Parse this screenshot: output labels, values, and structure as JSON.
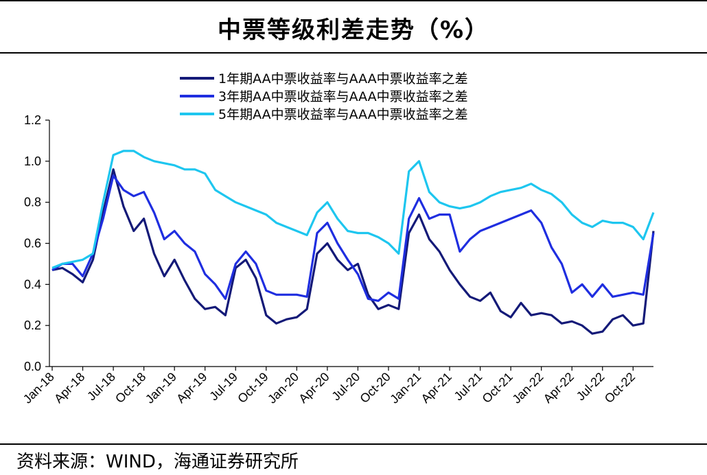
{
  "header": {
    "title": "中票等级利差走势（%）"
  },
  "footer": {
    "source": "资料来源：WIND，海通证券研究所"
  },
  "chart_data": {
    "type": "line",
    "title": "中票等级利差走势（%）",
    "xlabel": "",
    "ylabel": "",
    "ylim": [
      0,
      1.2
    ],
    "yticks": [
      "0.0",
      "0.2",
      "0.4",
      "0.6",
      "0.8",
      "1.0",
      "1.2"
    ],
    "xticks": [
      "Jan-18",
      "Apr-18",
      "Jul-18",
      "Oct-18",
      "Jan-19",
      "Apr-19",
      "Jul-19",
      "Oct-19",
      "Jan-20",
      "Apr-20",
      "Jul-20",
      "Oct-20",
      "Jan-21",
      "Apr-21",
      "Jul-21",
      "Oct-21",
      "Jan-22",
      "Apr-22",
      "Jul-22",
      "Oct-22"
    ],
    "grid": false,
    "legend_position": "top-center",
    "x": [
      "2018-01",
      "2018-02",
      "2018-03",
      "2018-04",
      "2018-05",
      "2018-06",
      "2018-07",
      "2018-08",
      "2018-09",
      "2018-10",
      "2018-11",
      "2018-12",
      "2019-01",
      "2019-02",
      "2019-03",
      "2019-04",
      "2019-05",
      "2019-06",
      "2019-07",
      "2019-08",
      "2019-09",
      "2019-10",
      "2019-11",
      "2019-12",
      "2020-01",
      "2020-02",
      "2020-03",
      "2020-04",
      "2020-05",
      "2020-06",
      "2020-07",
      "2020-08",
      "2020-09",
      "2020-10",
      "2020-11",
      "2020-12",
      "2021-01",
      "2021-02",
      "2021-03",
      "2021-04",
      "2021-05",
      "2021-06",
      "2021-07",
      "2021-08",
      "2021-09",
      "2021-10",
      "2021-11",
      "2021-12",
      "2022-01",
      "2022-02",
      "2022-03",
      "2022-04",
      "2022-05",
      "2022-06",
      "2022-07",
      "2022-08",
      "2022-09",
      "2022-10",
      "2022-11",
      "2022-12"
    ],
    "series": [
      {
        "name": "1年期AA中票收益率与AAA中票收益率之差",
        "color": "#141a78",
        "values": [
          0.47,
          0.48,
          0.45,
          0.41,
          0.52,
          0.75,
          0.96,
          0.78,
          0.66,
          0.72,
          0.55,
          0.44,
          0.52,
          0.42,
          0.33,
          0.28,
          0.29,
          0.25,
          0.48,
          0.52,
          0.43,
          0.25,
          0.21,
          0.23,
          0.24,
          0.28,
          0.55,
          0.6,
          0.52,
          0.47,
          0.5,
          0.35,
          0.28,
          0.3,
          0.28,
          0.65,
          0.74,
          0.62,
          0.56,
          0.47,
          0.4,
          0.34,
          0.32,
          0.36,
          0.27,
          0.24,
          0.31,
          0.25,
          0.26,
          0.25,
          0.21,
          0.22,
          0.2,
          0.16,
          0.17,
          0.23,
          0.25,
          0.2,
          0.21,
          0.66
        ]
      },
      {
        "name": "3年期AA中票收益率与AAA中票收益率之差",
        "color": "#1f2ee0",
        "values": [
          0.47,
          0.5,
          0.5,
          0.44,
          0.55,
          0.72,
          0.93,
          0.86,
          0.83,
          0.85,
          0.75,
          0.62,
          0.66,
          0.6,
          0.56,
          0.45,
          0.4,
          0.33,
          0.5,
          0.56,
          0.5,
          0.37,
          0.35,
          0.35,
          0.35,
          0.34,
          0.65,
          0.7,
          0.6,
          0.52,
          0.45,
          0.33,
          0.32,
          0.36,
          0.33,
          0.72,
          0.82,
          0.72,
          0.74,
          0.74,
          0.56,
          0.62,
          0.66,
          0.68,
          0.7,
          0.72,
          0.74,
          0.76,
          0.7,
          0.58,
          0.5,
          0.36,
          0.4,
          0.34,
          0.4,
          0.34,
          0.35,
          0.36,
          0.35,
          0.65
        ]
      },
      {
        "name": "5年期AA中票收益率与AAA中票收益率之差",
        "color": "#1ec6ef",
        "values": [
          0.48,
          0.5,
          0.51,
          0.52,
          0.55,
          0.8,
          1.03,
          1.05,
          1.05,
          1.02,
          1.0,
          0.99,
          0.98,
          0.96,
          0.96,
          0.94,
          0.86,
          0.83,
          0.8,
          0.78,
          0.76,
          0.74,
          0.7,
          0.68,
          0.66,
          0.64,
          0.75,
          0.8,
          0.72,
          0.66,
          0.65,
          0.65,
          0.63,
          0.6,
          0.55,
          0.95,
          1.0,
          0.85,
          0.8,
          0.78,
          0.77,
          0.78,
          0.8,
          0.83,
          0.85,
          0.86,
          0.87,
          0.89,
          0.86,
          0.84,
          0.8,
          0.74,
          0.7,
          0.68,
          0.71,
          0.7,
          0.7,
          0.68,
          0.62,
          0.75
        ]
      }
    ]
  }
}
